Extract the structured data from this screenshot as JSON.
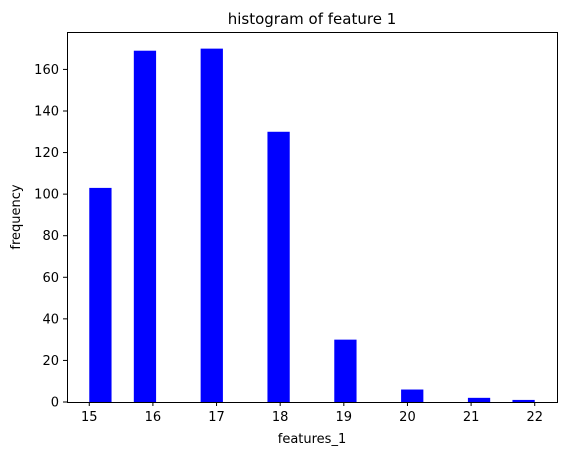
{
  "chart_data": {
    "type": "bar",
    "title": "histogram of feature 1",
    "xlabel": "features_1",
    "ylabel": "frequency",
    "x_ticks": [
      15,
      16,
      17,
      18,
      19,
      20,
      21,
      22
    ],
    "y_ticks": [
      0,
      20,
      40,
      60,
      80,
      100,
      120,
      140,
      160
    ],
    "xlim": [
      14.65,
      22.35
    ],
    "ylim": [
      0,
      178
    ],
    "bar_width": 0.35,
    "bar_color": "#0000ff",
    "grid": false,
    "bars": [
      {
        "x": 15.175,
        "value": 103
      },
      {
        "x": 15.875,
        "value": 169
      },
      {
        "x": 16.925,
        "value": 170
      },
      {
        "x": 17.975,
        "value": 130
      },
      {
        "x": 19.025,
        "value": 30
      },
      {
        "x": 20.075,
        "value": 6
      },
      {
        "x": 21.125,
        "value": 2
      },
      {
        "x": 21.825,
        "value": 1
      }
    ]
  }
}
